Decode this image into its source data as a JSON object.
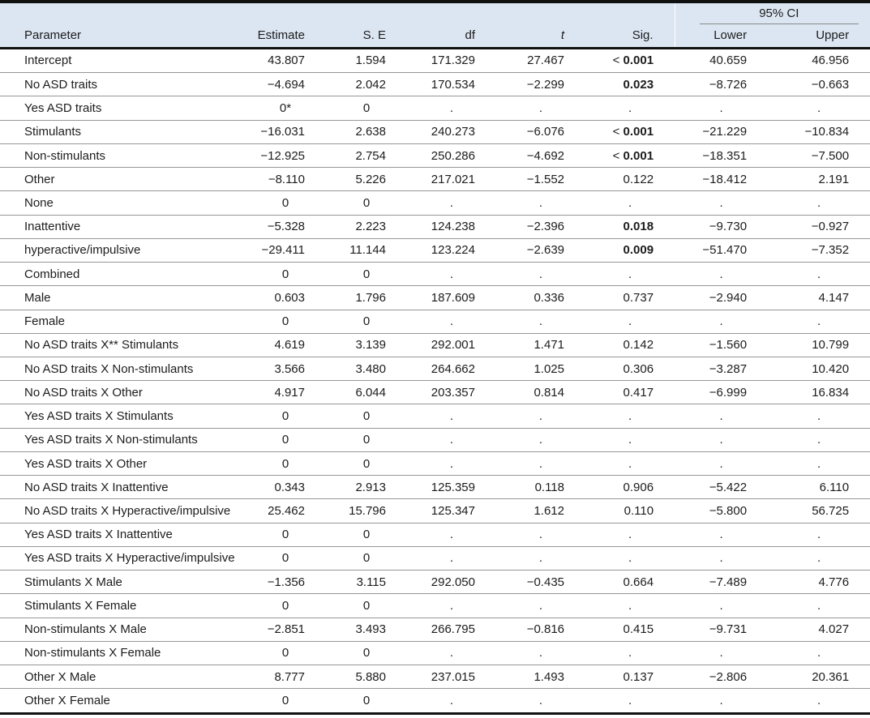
{
  "table": {
    "ci_group_label": "95% CI",
    "columns": {
      "parameter": "Parameter",
      "estimate": "Estimate",
      "se": "S. E",
      "df": "df",
      "t": "t",
      "sig": "Sig.",
      "lower": "Lower",
      "upper": "Upper"
    },
    "rows": [
      {
        "param": "Intercept",
        "estimate": "43.807",
        "se": "1.594",
        "df": "171.329",
        "t": "27.467",
        "sig": "< 0.001",
        "sig_bold": true,
        "lower": "40.659",
        "upper": "46.956"
      },
      {
        "param": "No ASD traits",
        "estimate": "−4.694",
        "se": "2.042",
        "df": "170.534",
        "t": "−2.299",
        "sig": "0.023",
        "sig_bold": true,
        "lower": "−8.726",
        "upper": "−0.663"
      },
      {
        "param": "Yes ASD traits",
        "estimate": "0*",
        "se": "0",
        "df": ".",
        "t": ".",
        "sig": ".",
        "sig_bold": false,
        "lower": ".",
        "upper": "."
      },
      {
        "param": "Stimulants",
        "estimate": "−16.031",
        "se": "2.638",
        "df": "240.273",
        "t": "−6.076",
        "sig": "< 0.001",
        "sig_bold": true,
        "lower": "−21.229",
        "upper": "−10.834"
      },
      {
        "param": "Non-stimulants",
        "estimate": "−12.925",
        "se": "2.754",
        "df": "250.286",
        "t": "−4.692",
        "sig": "< 0.001",
        "sig_bold": true,
        "lower": "−18.351",
        "upper": "−7.500"
      },
      {
        "param": "Other",
        "estimate": "−8.110",
        "se": "5.226",
        "df": "217.021",
        "t": "−1.552",
        "sig": "0.122",
        "sig_bold": false,
        "lower": "−18.412",
        "upper": "2.191"
      },
      {
        "param": "None",
        "estimate": "0",
        "se": "0",
        "df": ".",
        "t": ".",
        "sig": ".",
        "sig_bold": false,
        "lower": ".",
        "upper": "."
      },
      {
        "param": "Inattentive",
        "estimate": "−5.328",
        "se": "2.223",
        "df": "124.238",
        "t": "−2.396",
        "sig": "0.018",
        "sig_bold": true,
        "lower": "−9.730",
        "upper": "−0.927"
      },
      {
        "param": "hyperactive/impulsive",
        "estimate": "−29.411",
        "se": "11.144",
        "df": "123.224",
        "t": "−2.639",
        "sig": "0.009",
        "sig_bold": true,
        "lower": "−51.470",
        "upper": "−7.352"
      },
      {
        "param": "Combined",
        "estimate": "0",
        "se": "0",
        "df": ".",
        "t": ".",
        "sig": ".",
        "sig_bold": false,
        "lower": ".",
        "upper": "."
      },
      {
        "param": "Male",
        "estimate": "0.603",
        "se": "1.796",
        "df": "187.609",
        "t": "0.336",
        "sig": "0.737",
        "sig_bold": false,
        "lower": "−2.940",
        "upper": "4.147"
      },
      {
        "param": "Female",
        "estimate": "0",
        "se": "0",
        "df": ".",
        "t": ".",
        "sig": ".",
        "sig_bold": false,
        "lower": ".",
        "upper": "."
      },
      {
        "param": "No ASD traits X** Stimulants",
        "estimate": "4.619",
        "se": "3.139",
        "df": "292.001",
        "t": "1.471",
        "sig": "0.142",
        "sig_bold": false,
        "lower": "−1.560",
        "upper": "10.799"
      },
      {
        "param": "No ASD traits X Non-stimulants",
        "estimate": "3.566",
        "se": "3.480",
        "df": "264.662",
        "t": "1.025",
        "sig": "0.306",
        "sig_bold": false,
        "lower": "−3.287",
        "upper": "10.420"
      },
      {
        "param": "No ASD traits X Other",
        "estimate": "4.917",
        "se": "6.044",
        "df": "203.357",
        "t": "0.814",
        "sig": "0.417",
        "sig_bold": false,
        "lower": "−6.999",
        "upper": "16.834"
      },
      {
        "param": "Yes ASD traits X Stimulants",
        "estimate": "0",
        "se": "0",
        "df": ".",
        "t": ".",
        "sig": ".",
        "sig_bold": false,
        "lower": ".",
        "upper": "."
      },
      {
        "param": "Yes ASD traits X Non-stimulants",
        "estimate": "0",
        "se": "0",
        "df": ".",
        "t": ".",
        "sig": ".",
        "sig_bold": false,
        "lower": ".",
        "upper": "."
      },
      {
        "param": "Yes ASD traits X Other",
        "estimate": "0",
        "se": "0",
        "df": ".",
        "t": ".",
        "sig": ".",
        "sig_bold": false,
        "lower": ".",
        "upper": "."
      },
      {
        "param": "No ASD traits X Inattentive",
        "estimate": "0.343",
        "se": "2.913",
        "df": "125.359",
        "t": "0.118",
        "sig": "0.906",
        "sig_bold": false,
        "lower": "−5.422",
        "upper": "6.110"
      },
      {
        "param": "No ASD traits X Hyperactive/impulsive",
        "estimate": "25.462",
        "se": "15.796",
        "df": "125.347",
        "t": "1.612",
        "sig": "0.110",
        "sig_bold": false,
        "lower": "−5.800",
        "upper": "56.725"
      },
      {
        "param": "Yes ASD traits X Inattentive",
        "estimate": "0",
        "se": "0",
        "df": ".",
        "t": ".",
        "sig": ".",
        "sig_bold": false,
        "lower": ".",
        "upper": "."
      },
      {
        "param": "Yes ASD traits X Hyperactive/impulsive",
        "estimate": "0",
        "se": "0",
        "df": ".",
        "t": ".",
        "sig": ".",
        "sig_bold": false,
        "lower": ".",
        "upper": "."
      },
      {
        "param": "Stimulants X Male",
        "estimate": "−1.356",
        "se": "3.115",
        "df": "292.050",
        "t": "−0.435",
        "sig": "0.664",
        "sig_bold": false,
        "lower": "−7.489",
        "upper": "4.776"
      },
      {
        "param": "Stimulants X Female",
        "estimate": "0",
        "se": "0",
        "df": ".",
        "t": ".",
        "sig": ".",
        "sig_bold": false,
        "lower": ".",
        "upper": "."
      },
      {
        "param": "Non-stimulants X Male",
        "estimate": "−2.851",
        "se": "3.493",
        "df": "266.795",
        "t": "−0.816",
        "sig": "0.415",
        "sig_bold": false,
        "lower": "−9.731",
        "upper": "4.027"
      },
      {
        "param": "Non-stimulants X Female",
        "estimate": "0",
        "se": "0",
        "df": ".",
        "t": ".",
        "sig": ".",
        "sig_bold": false,
        "lower": ".",
        "upper": "."
      },
      {
        "param": "Other X Male",
        "estimate": "8.777",
        "se": "5.880",
        "df": "237.015",
        "t": "1.493",
        "sig": "0.137",
        "sig_bold": false,
        "lower": "−2.806",
        "upper": "20.361"
      },
      {
        "param": "Other X Female",
        "estimate": "0",
        "se": "0",
        "df": ".",
        "t": ".",
        "sig": ".",
        "sig_bold": false,
        "lower": ".",
        "upper": "."
      }
    ]
  },
  "colors": {
    "header_background": "#dce6f2",
    "heavy_border": "#101010",
    "row_separator": "#969696",
    "ci_underline": "#8a8a8a",
    "text": "#1c1c1c"
  }
}
